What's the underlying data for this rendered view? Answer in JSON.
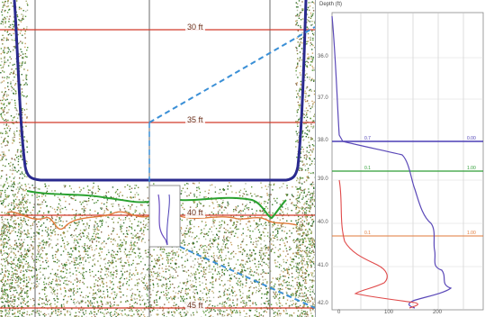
{
  "echogram": {
    "depth_labels": [
      "30 ft",
      "35 ft",
      "40 ft",
      "45 ft"
    ],
    "colors": {
      "depth_line": "#d23b2b",
      "hull": "#2a2a8e",
      "green_trace": "#29a12f",
      "orange_trace": "#e07a3a",
      "purple_trace": "#6a4cc0",
      "dashed_link": "#3a8fd6"
    }
  },
  "profile": {
    "axis_title": "Depth (ft)",
    "y_ticks": [
      "36.0",
      "37.0",
      "38.0",
      "39.0",
      "40.0",
      "41.0",
      "42.0"
    ],
    "x_ticks": [
      "0",
      "100",
      "200"
    ],
    "series_labels": [
      {
        "left": "0.7",
        "right": "0.00",
        "color": "#4b3fb5"
      },
      {
        "left": "0.1",
        "right": "1.00",
        "color": "#2f9e36"
      },
      {
        "left": "0.1",
        "right": "1.00",
        "color": "#e07a3a"
      }
    ]
  }
}
